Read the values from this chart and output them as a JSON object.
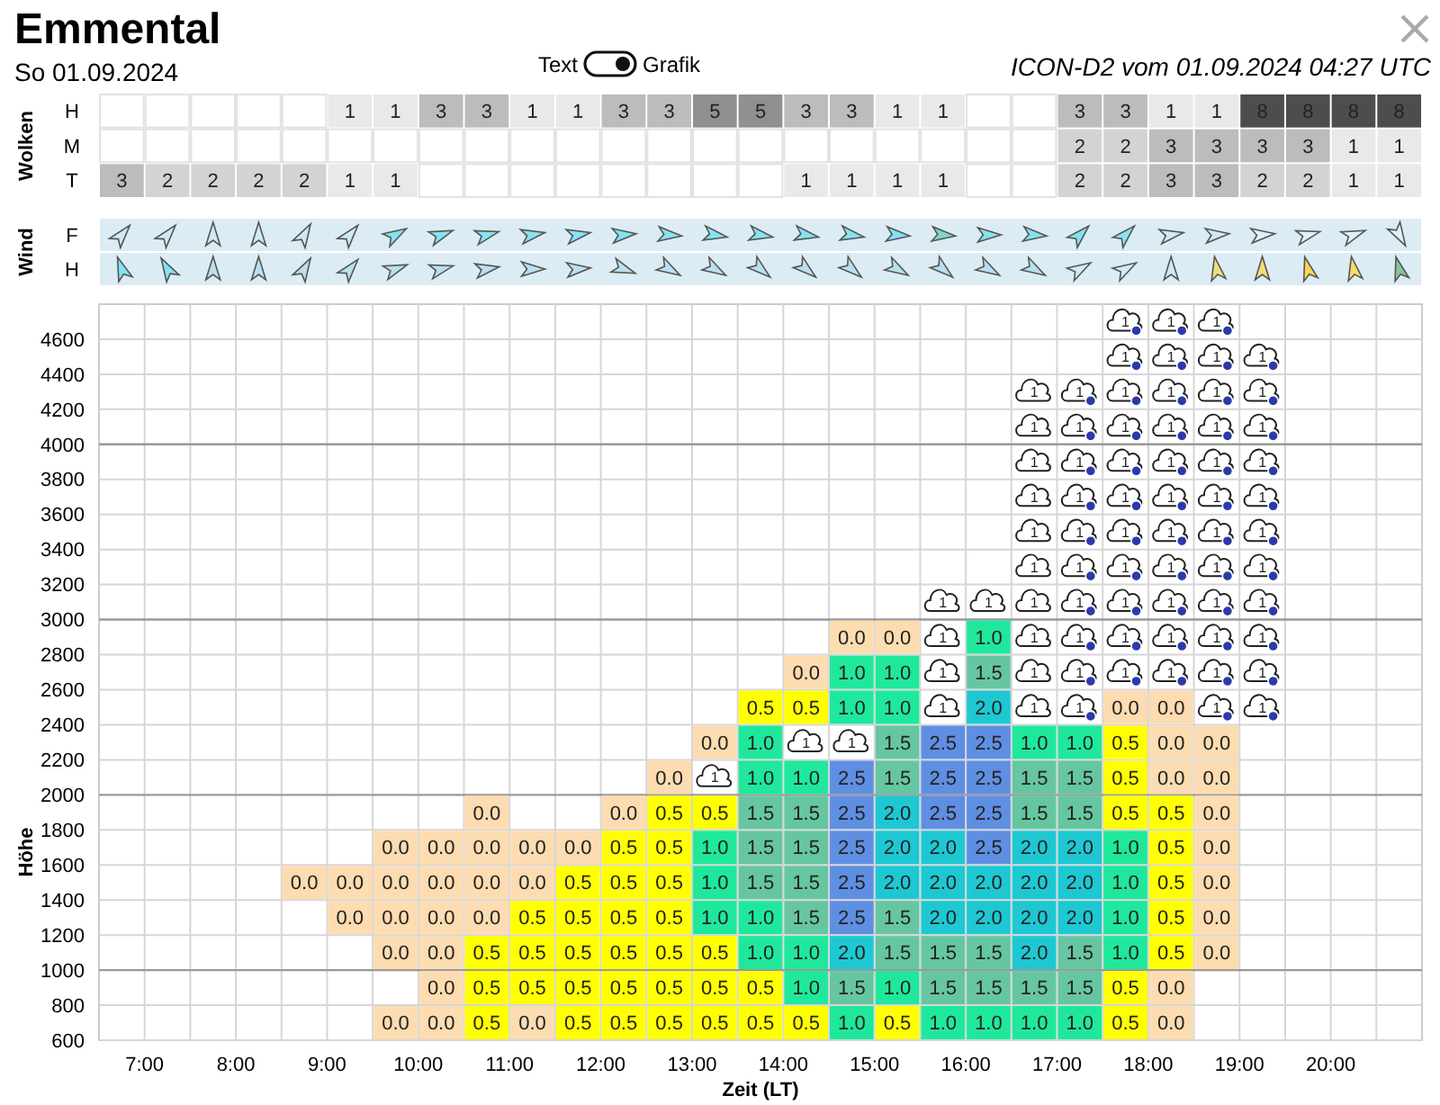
{
  "chart_data": [
    {
      "type": "heatmap",
      "title": "Emmental",
      "subtitle": "So 01.09.2024",
      "annotations": [
        "ICON-D2 vom 01.09.2024 04:27 UTC",
        "Text",
        "Grafik"
      ],
      "ylabel": "Wolken",
      "y_categories": [
        "H",
        "M",
        "T"
      ],
      "categories": [
        null,
        null,
        null,
        null,
        null,
        null,
        null,
        null,
        null,
        null,
        null,
        null,
        null,
        null,
        null,
        null,
        null,
        null,
        null,
        null,
        null,
        null,
        null,
        null,
        null,
        null,
        null,
        null,
        null
      ],
      "data_labels": true,
      "cells": [
        [
          null,
          null,
          null,
          null,
          null,
          1,
          1,
          3,
          3,
          1,
          1,
          3,
          3,
          5,
          5,
          3,
          3,
          1,
          1,
          null,
          null,
          3,
          3,
          1,
          1,
          8,
          8,
          8,
          8
        ],
        [
          null,
          null,
          null,
          null,
          null,
          null,
          null,
          null,
          null,
          null,
          null,
          null,
          null,
          null,
          null,
          null,
          null,
          null,
          null,
          null,
          null,
          2,
          2,
          3,
          3,
          3,
          3,
          1,
          1
        ],
        [
          3,
          2,
          2,
          2,
          2,
          1,
          1,
          null,
          null,
          null,
          null,
          null,
          null,
          null,
          null,
          1,
          1,
          1,
          1,
          null,
          null,
          2,
          2,
          3,
          3,
          2,
          2,
          1,
          1
        ]
      ]
    },
    {
      "type": "other",
      "ylabel": "Wind",
      "y_categories": [
        "F",
        "H"
      ]
    },
    {
      "type": "heatmap",
      "xlabel": "Zeit (LT)",
      "ylabel": "Höhe",
      "grid": true,
      "x": [
        6.75,
        7.25,
        7.75,
        8.25,
        8.75,
        9.25,
        9.75,
        10.25,
        10.75,
        11.25,
        11.75,
        12.25,
        12.75,
        13.25,
        13.75,
        14.25,
        14.75,
        15.25,
        15.75,
        16.25,
        16.75,
        17.25,
        17.75,
        18.25,
        18.75,
        19.25,
        19.75,
        20.25,
        20.75
      ],
      "xlim": [
        6.5,
        21
      ],
      "xticks": [
        {
          "value": 7,
          "label": "7:00"
        },
        {
          "value": 7.5,
          "label": null
        },
        {
          "value": 8,
          "label": "8:00"
        },
        {
          "value": 8.5,
          "label": null
        },
        {
          "value": 9,
          "label": "9:00"
        },
        {
          "value": 9.5,
          "label": null
        },
        {
          "value": 10,
          "label": "10:00"
        },
        {
          "value": 10.5,
          "label": null
        },
        {
          "value": 11,
          "label": "11:00"
        },
        {
          "value": 11.5,
          "label": null
        },
        {
          "value": 12,
          "label": "12:00"
        },
        {
          "value": 12.5,
          "label": null
        },
        {
          "value": 13,
          "label": "13:00"
        },
        {
          "value": 13.5,
          "label": null
        },
        {
          "value": 14,
          "label": "14:00"
        },
        {
          "value": 14.5,
          "label": null
        },
        {
          "value": 15,
          "label": "15:00"
        },
        {
          "value": 15.5,
          "label": null
        },
        {
          "value": 16,
          "label": "16:00"
        },
        {
          "value": 16.5,
          "label": null
        },
        {
          "value": 17,
          "label": "17:00"
        },
        {
          "value": 17.5,
          "label": null
        },
        {
          "value": 18,
          "label": "18:00"
        },
        {
          "value": 18.5,
          "label": null
        },
        {
          "value": 19,
          "label": "19:00"
        },
        {
          "value": 19.5,
          "label": null
        },
        {
          "value": 20,
          "label": "20:00"
        },
        {
          "value": 20.5,
          "label": null
        }
      ],
      "y_categories": [
        "4600",
        "4400",
        "4200",
        "4000",
        "3800",
        "3600",
        "3400",
        "3200",
        "3000",
        "2800",
        "2600",
        "2400",
        "2200",
        "2000",
        "1800",
        "1600",
        "1400",
        "1200",
        "1000",
        "800",
        "600"
      ],
      "cells": [
        [
          null,
          null,
          null,
          null,
          null,
          null,
          null,
          null,
          null,
          null,
          null,
          null,
          null,
          null,
          null,
          null,
          null,
          null,
          null,
          null,
          null,
          null,
          null,
          null,
          null,
          null,
          null,
          null,
          null
        ],
        [
          null,
          null,
          null,
          null,
          null,
          null,
          null,
          null,
          null,
          null,
          null,
          null,
          null,
          null,
          null,
          null,
          null,
          null,
          null,
          null,
          null,
          null,
          null,
          null,
          null,
          null,
          null,
          null,
          null
        ],
        [
          null,
          null,
          null,
          null,
          null,
          null,
          null,
          null,
          null,
          null,
          null,
          null,
          null,
          null,
          null,
          null,
          null,
          null,
          null,
          null,
          null,
          null,
          null,
          null,
          null,
          null,
          null,
          null,
          null
        ],
        [
          null,
          null,
          null,
          null,
          null,
          null,
          null,
          null,
          null,
          null,
          null,
          null,
          null,
          null,
          null,
          null,
          null,
          null,
          null,
          null,
          null,
          null,
          null,
          null,
          null,
          null,
          null,
          null,
          null
        ],
        [
          null,
          null,
          null,
          null,
          null,
          null,
          null,
          null,
          null,
          null,
          null,
          null,
          null,
          null,
          null,
          null,
          null,
          null,
          null,
          null,
          null,
          null,
          null,
          null,
          null,
          null,
          null,
          null,
          null
        ],
        [
          null,
          null,
          null,
          null,
          null,
          null,
          null,
          null,
          null,
          null,
          null,
          null,
          null,
          null,
          null,
          null,
          null,
          null,
          null,
          null,
          null,
          null,
          null,
          null,
          null,
          null,
          null,
          null,
          null
        ],
        [
          null,
          null,
          null,
          null,
          null,
          null,
          null,
          null,
          null,
          null,
          null,
          null,
          null,
          null,
          null,
          null,
          null,
          null,
          null,
          null,
          null,
          null,
          null,
          null,
          null,
          null,
          null,
          null,
          null
        ],
        [
          null,
          null,
          null,
          null,
          null,
          null,
          null,
          null,
          null,
          null,
          null,
          null,
          null,
          null,
          null,
          null,
          null,
          null,
          null,
          null,
          null,
          null,
          null,
          null,
          null,
          null,
          null,
          null,
          null
        ],
        [
          null,
          null,
          null,
          null,
          null,
          null,
          null,
          null,
          null,
          null,
          null,
          null,
          null,
          null,
          null,
          null,
          null,
          null,
          null,
          null,
          null,
          null,
          null,
          null,
          null,
          null,
          null,
          null,
          null
        ],
        [
          null,
          null,
          null,
          null,
          null,
          null,
          null,
          null,
          null,
          null,
          null,
          null,
          null,
          null,
          null,
          null,
          0,
          0,
          null,
          1.0,
          null,
          null,
          null,
          null,
          null,
          null,
          null,
          null,
          null
        ],
        [
          null,
          null,
          null,
          null,
          null,
          null,
          null,
          null,
          null,
          null,
          null,
          null,
          null,
          null,
          null,
          0,
          1.0,
          1.0,
          null,
          1.5,
          null,
          null,
          null,
          null,
          null,
          null,
          null,
          null,
          null
        ],
        [
          null,
          null,
          null,
          null,
          null,
          null,
          null,
          null,
          null,
          null,
          null,
          null,
          null,
          null,
          0.5,
          0.5,
          1.0,
          1.0,
          null,
          2.0,
          null,
          null,
          0,
          0,
          null,
          null,
          null,
          null,
          null
        ],
        [
          null,
          null,
          null,
          null,
          null,
          null,
          null,
          null,
          null,
          null,
          null,
          null,
          null,
          0,
          1.0,
          null,
          null,
          1.5,
          2.5,
          2.5,
          1.0,
          1.0,
          0.5,
          0,
          0,
          null,
          null,
          null,
          null
        ],
        [
          null,
          null,
          null,
          null,
          null,
          null,
          null,
          null,
          null,
          null,
          null,
          null,
          0,
          null,
          1.0,
          1.0,
          2.5,
          1.5,
          2.5,
          2.5,
          1.5,
          1.5,
          0.5,
          0,
          0,
          null,
          null,
          null,
          null
        ],
        [
          null,
          null,
          null,
          null,
          null,
          null,
          null,
          null,
          0,
          null,
          null,
          0,
          0.5,
          0.5,
          1.5,
          1.5,
          2.5,
          2.0,
          2.5,
          2.5,
          1.5,
          1.5,
          0.5,
          0.5,
          0,
          null,
          null,
          null,
          null
        ],
        [
          null,
          null,
          null,
          null,
          null,
          null,
          0,
          0,
          0,
          0,
          0,
          0.5,
          0.5,
          1.0,
          1.5,
          1.5,
          2.5,
          2.0,
          2.0,
          2.5,
          2.0,
          2.0,
          1.0,
          0.5,
          0,
          null,
          null,
          null,
          null
        ],
        [
          null,
          null,
          null,
          null,
          0,
          0,
          0,
          0,
          0,
          0,
          0.5,
          0.5,
          0.5,
          1.0,
          1.5,
          1.5,
          2.5,
          2.0,
          2.0,
          2.0,
          2.0,
          2.0,
          1.0,
          0.5,
          0,
          null,
          null,
          null,
          null
        ],
        [
          null,
          null,
          null,
          null,
          null,
          0,
          0,
          0,
          0,
          0.5,
          0.5,
          0.5,
          0.5,
          1.0,
          1.0,
          1.5,
          2.5,
          1.5,
          2.0,
          2.0,
          2.0,
          2.0,
          1.0,
          0.5,
          0,
          null,
          null,
          null,
          null
        ],
        [
          null,
          null,
          null,
          null,
          null,
          null,
          0,
          0,
          0.5,
          0.5,
          0.5,
          0.5,
          0.5,
          0.5,
          1.0,
          1.0,
          2.0,
          1.5,
          1.5,
          1.5,
          2.0,
          1.5,
          1.0,
          0.5,
          0,
          null,
          null,
          null,
          null
        ],
        [
          null,
          null,
          null,
          null,
          null,
          null,
          null,
          0,
          0.5,
          0.5,
          0.5,
          0.5,
          0.5,
          0.5,
          0.5,
          1.0,
          1.5,
          1.0,
          1.5,
          1.5,
          1.5,
          1.5,
          0.5,
          0,
          null,
          null,
          null,
          null,
          null
        ],
        [
          null,
          null,
          null,
          null,
          null,
          null,
          0,
          0,
          0.5,
          0,
          0.5,
          0.5,
          0.5,
          0.5,
          0.5,
          0.5,
          1.0,
          0.5,
          1.0,
          1.0,
          1.0,
          1.0,
          0.5,
          0,
          null,
          null,
          null,
          null,
          null
        ]
      ],
      "cell_labels": [
        [
          null,
          null,
          null,
          null,
          null,
          null,
          null,
          null,
          null,
          null,
          null,
          null,
          null,
          null,
          null,
          null,
          null,
          null,
          null,
          null,
          null,
          null,
          "1",
          "1",
          "1",
          null,
          null,
          null,
          null
        ],
        [
          null,
          null,
          null,
          null,
          null,
          null,
          null,
          null,
          null,
          null,
          null,
          null,
          null,
          null,
          null,
          null,
          null,
          null,
          null,
          null,
          null,
          null,
          "1",
          "1",
          "1",
          "1",
          null,
          null,
          null
        ],
        [
          null,
          null,
          null,
          null,
          null,
          null,
          null,
          null,
          null,
          null,
          null,
          null,
          null,
          null,
          null,
          null,
          null,
          null,
          null,
          null,
          "1",
          "1",
          "1",
          "1",
          "1",
          "1",
          null,
          null,
          null
        ],
        [
          null,
          null,
          null,
          null,
          null,
          null,
          null,
          null,
          null,
          null,
          null,
          null,
          null,
          null,
          null,
          null,
          null,
          null,
          null,
          null,
          "1",
          "1",
          "1",
          "1",
          "1",
          "1",
          null,
          null,
          null
        ],
        [
          null,
          null,
          null,
          null,
          null,
          null,
          null,
          null,
          null,
          null,
          null,
          null,
          null,
          null,
          null,
          null,
          null,
          null,
          null,
          null,
          "1",
          "1",
          "1",
          "1",
          "1",
          "1",
          null,
          null,
          null
        ],
        [
          null,
          null,
          null,
          null,
          null,
          null,
          null,
          null,
          null,
          null,
          null,
          null,
          null,
          null,
          null,
          null,
          null,
          null,
          null,
          null,
          "1",
          "1",
          "1",
          "1",
          "1",
          "1",
          null,
          null,
          null
        ],
        [
          null,
          null,
          null,
          null,
          null,
          null,
          null,
          null,
          null,
          null,
          null,
          null,
          null,
          null,
          null,
          null,
          null,
          null,
          null,
          null,
          "1",
          "1",
          "1",
          "1",
          "1",
          "1",
          null,
          null,
          null
        ],
        [
          null,
          null,
          null,
          null,
          null,
          null,
          null,
          null,
          null,
          null,
          null,
          null,
          null,
          null,
          null,
          null,
          null,
          null,
          null,
          null,
          "1",
          "1",
          "1",
          "1",
          "1",
          "1",
          null,
          null,
          null
        ],
        [
          null,
          null,
          null,
          null,
          null,
          null,
          null,
          null,
          null,
          null,
          null,
          null,
          null,
          null,
          null,
          null,
          null,
          null,
          "1",
          "1",
          "1",
          "1",
          "1",
          "1",
          "1",
          "1",
          null,
          null,
          null
        ],
        [
          null,
          null,
          null,
          null,
          null,
          null,
          null,
          null,
          null,
          null,
          null,
          null,
          null,
          null,
          null,
          null,
          "0.0",
          "0.0",
          "1",
          "1.0",
          "1",
          "1",
          "1",
          "1",
          "1",
          "1",
          null,
          null,
          null
        ],
        [
          null,
          null,
          null,
          null,
          null,
          null,
          null,
          null,
          null,
          null,
          null,
          null,
          null,
          null,
          null,
          "0.0",
          "1.0",
          "1.0",
          "1",
          "1.5",
          "1",
          "1",
          "1",
          "1",
          "1",
          "1",
          null,
          null,
          null
        ],
        [
          null,
          null,
          null,
          null,
          null,
          null,
          null,
          null,
          null,
          null,
          null,
          null,
          null,
          null,
          "0.5",
          "0.5",
          "1.0",
          "1.0",
          "1",
          "2.0",
          "1",
          "1",
          "0.0",
          "0.0",
          "1",
          "1",
          null,
          null,
          null
        ],
        [
          null,
          null,
          null,
          null,
          null,
          null,
          null,
          null,
          null,
          null,
          null,
          null,
          null,
          "0.0",
          "1.0",
          "1",
          "1",
          "1.5",
          "2.5",
          "2.5",
          "1.0",
          "1.0",
          "0.5",
          "0.0",
          "0.0",
          null,
          null,
          null,
          null
        ],
        [
          null,
          null,
          null,
          null,
          null,
          null,
          null,
          null,
          null,
          null,
          null,
          null,
          "0.0",
          "1",
          "1.0",
          "1.0",
          "2.5",
          "1.5",
          "2.5",
          "2.5",
          "1.5",
          "1.5",
          "0.5",
          "0.0",
          "0.0",
          null,
          null,
          null,
          null
        ],
        [
          null,
          null,
          null,
          null,
          null,
          null,
          null,
          null,
          "0.0",
          null,
          null,
          "0.0",
          "0.5",
          "0.5",
          "1.5",
          "1.5",
          "2.5",
          "2.0",
          "2.5",
          "2.5",
          "1.5",
          "1.5",
          "0.5",
          "0.5",
          "0.0",
          null,
          null,
          null,
          null
        ],
        [
          null,
          null,
          null,
          null,
          null,
          null,
          "0.0",
          "0.0",
          "0.0",
          "0.0",
          "0.0",
          "0.5",
          "0.5",
          "1.0",
          "1.5",
          "1.5",
          "2.5",
          "2.0",
          "2.0",
          "2.5",
          "2.0",
          "2.0",
          "1.0",
          "0.5",
          "0.0",
          null,
          null,
          null,
          null
        ],
        [
          null,
          null,
          null,
          null,
          "0.0",
          "0.0",
          "0.0",
          "0.0",
          "0.0",
          "0.0",
          "0.5",
          "0.5",
          "0.5",
          "1.0",
          "1.5",
          "1.5",
          "2.5",
          "2.0",
          "2.0",
          "2.0",
          "2.0",
          "2.0",
          "1.0",
          "0.5",
          "0.0",
          null,
          null,
          null,
          null
        ],
        [
          null,
          null,
          null,
          null,
          null,
          "0.0",
          "0.0",
          "0.0",
          "0.0",
          "0.5",
          "0.5",
          "0.5",
          "0.5",
          "1.0",
          "1.0",
          "1.5",
          "2.5",
          "1.5",
          "2.0",
          "2.0",
          "2.0",
          "2.0",
          "1.0",
          "0.5",
          "0.0",
          null,
          null,
          null,
          null
        ],
        [
          null,
          null,
          null,
          null,
          null,
          null,
          "0.0",
          "0.0",
          "0.5",
          "0.5",
          "0.5",
          "0.5",
          "0.5",
          "0.5",
          "1.0",
          "1.0",
          "2.0",
          "1.5",
          "1.5",
          "1.5",
          "2.0",
          "1.5",
          "1.0",
          "0.5",
          "0.0",
          null,
          null,
          null,
          null
        ],
        [
          null,
          null,
          null,
          null,
          null,
          null,
          null,
          "0.0",
          "0.5",
          "0.5",
          "0.5",
          "0.5",
          "0.5",
          "0.5",
          "0.5",
          "1.0",
          "1.5",
          "1.0",
          "1.5",
          "1.5",
          "1.5",
          "1.5",
          "0.5",
          "0.0",
          null,
          null,
          null,
          null,
          null
        ],
        [
          null,
          null,
          null,
          null,
          null,
          null,
          "0.0",
          "0.0",
          "0.5",
          "0.0",
          "0.5",
          "0.5",
          "0.5",
          "0.5",
          "0.5",
          "0.5",
          "1.0",
          "0.5",
          "1.0",
          "1.0",
          "1.0",
          "1.0",
          "0.5",
          "0.0",
          null,
          null,
          null,
          null,
          null
        ]
      ]
    }
  ]
}
